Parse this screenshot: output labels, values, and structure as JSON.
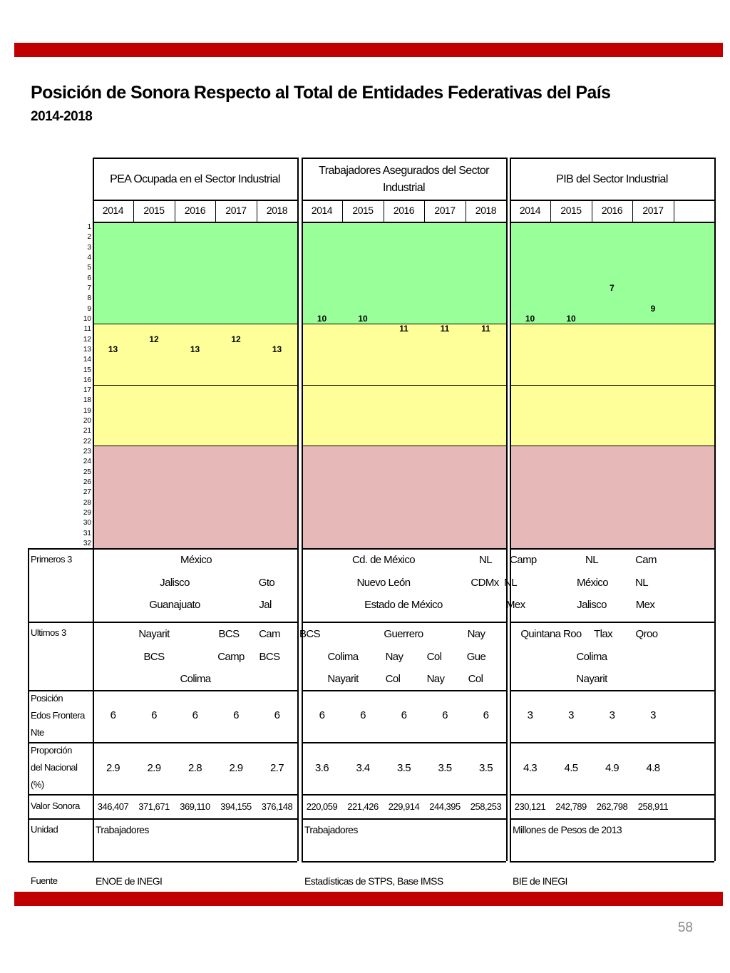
{
  "page": {
    "title": "Posición de Sonora Respecto al Total de Entidades Federativas del País",
    "subtitle": "2014-2018",
    "page_number": "58"
  },
  "colors": {
    "red_bar": "#c00000",
    "green": "#99ff99",
    "yellow": "#ffff99",
    "red_band": "#e6b8b8"
  },
  "groups": [
    {
      "header": "PEA Ocupada en el Sector Industrial",
      "years": [
        "2014",
        "2015",
        "2016",
        "2017",
        "2018"
      ],
      "ranks": [
        13,
        12,
        13,
        12,
        13
      ],
      "primeros": [
        [
          "México"
        ],
        [
          "Jalisco",
          "Gto"
        ],
        [
          "Guanajuato",
          "Jal"
        ]
      ],
      "ultimos": [
        [
          "Nayarit",
          "BCS",
          "Cam"
        ],
        [
          "BCS",
          "Camp",
          "BCS"
        ],
        [
          "Colima"
        ]
      ],
      "frontera": [
        "6",
        "6",
        "6",
        "6",
        "6"
      ],
      "proporcion": [
        "2.9",
        "2.9",
        "2.8",
        "2.9",
        "2.7"
      ],
      "valor": [
        "346,407",
        "371,671",
        "369,110",
        "394,155",
        "376,148"
      ],
      "unidad": "Trabajadores",
      "fuente": "ENOE de INEGI"
    },
    {
      "header": "Trabajadores Asegurados del Sector Industrial",
      "years": [
        "2014",
        "2015",
        "2016",
        "2017",
        "2018"
      ],
      "ranks": [
        10,
        10,
        11,
        11,
        11
      ],
      "primeros": [
        [
          "Cd. de México",
          "NL"
        ],
        [
          "Nuevo León",
          "CDMx"
        ],
        [
          "Estado de México"
        ]
      ],
      "ultimos": [
        [
          "BCS",
          "Guerrero",
          "Nay"
        ],
        [
          "Colima",
          "Nay",
          "Col",
          "Gue"
        ],
        [
          "Nayarit",
          "Col",
          "Nay",
          "Col"
        ]
      ],
      "frontera": [
        "6",
        "6",
        "6",
        "6",
        "6"
      ],
      "proporcion": [
        "3.6",
        "3.4",
        "3.5",
        "3.5",
        "3.5"
      ],
      "valor": [
        "220,059",
        "221,426",
        "229,914",
        "244,395",
        "258,253"
      ],
      "unidad": "Trabajadores",
      "fuente": "Estadísticas de STPS, Base IMSS"
    },
    {
      "header": "PIB del Sector Industrial",
      "years": [
        "2014",
        "2015",
        "2016",
        "2017"
      ],
      "ranks": [
        10,
        10,
        7,
        9
      ],
      "primeros": [
        [
          "Camp",
          "NL",
          "Cam"
        ],
        [
          "NL",
          "México",
          "NL"
        ],
        [
          "Mex",
          "Jalisco",
          "Mex"
        ]
      ],
      "ultimos": [
        [
          "Quintana Roo",
          "Tlax",
          "Qroo"
        ],
        [
          "Colima"
        ],
        [
          "Nayarit"
        ]
      ],
      "frontera": [
        "3",
        "3",
        "3",
        "3"
      ],
      "proporcion": [
        "4.3",
        "4.5",
        "4.9",
        "4.8"
      ],
      "valor": [
        "230,121",
        "242,789",
        "262,798",
        "258,911"
      ],
      "unidad": "Millones de Pesos de 2013",
      "fuente": "BIE de INEGI"
    }
  ],
  "row_labels": {
    "primeros": "Primeros 3",
    "ultimos": "Ultimos 3",
    "frontera": [
      "Posición",
      "Edos Frontera",
      "Nte"
    ],
    "proporcion": [
      "Proporción",
      "del Nacional",
      "(%)"
    ],
    "valor": "Valor Sonora",
    "unidad": "Unidad",
    "fuente": "Fuente"
  },
  "rank_ticks": [
    "1",
    "2",
    "3",
    "4",
    "5",
    "6",
    "7",
    "8",
    "9",
    "10",
    "11",
    "12",
    "13",
    "14",
    "15",
    "16",
    "17",
    "18",
    "19",
    "20",
    "21",
    "22",
    "23",
    "24",
    "25",
    "26",
    "27",
    "28",
    "29",
    "30",
    "31",
    "32"
  ]
}
